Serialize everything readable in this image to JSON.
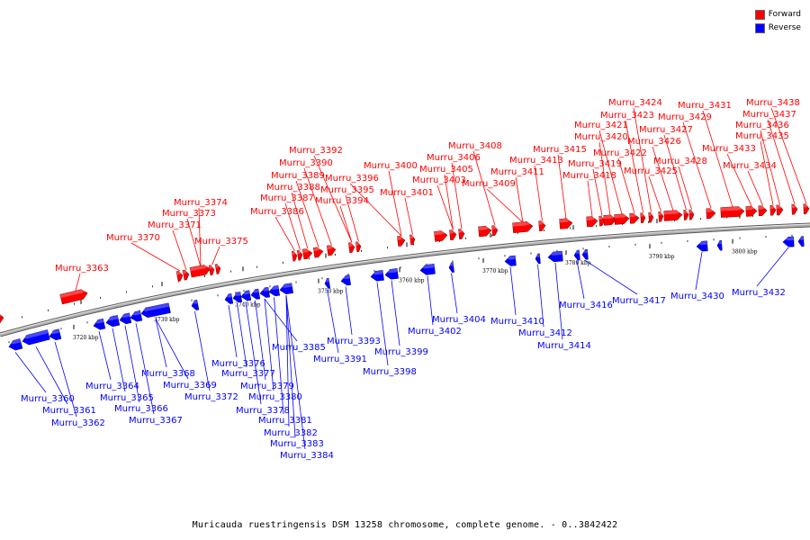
{
  "legend": {
    "forward_label": "Forward",
    "reverse_label": "Reverse",
    "forward_color": "#ff0000",
    "reverse_color": "#0000ff"
  },
  "caption": "Muricauda ruestringensis DSM 13258 chromosome, complete genome. - 0..3842422",
  "colors": {
    "forward": "#ff0000",
    "reverse": "#0000ff",
    "backbone": "#888888"
  },
  "ticks": [
    "3720 kbp",
    "3730 kbp",
    "3740 kbp",
    "3750 kbp",
    "3760 kbp",
    "3770 kbp",
    "3780 kbp",
    "3790 kbp",
    "3800 kbp"
  ],
  "forward_genes": [
    "Murru_3363",
    "Murru_3370",
    "Murru_3371",
    "Murru_3373",
    "Murru_3374",
    "Murru_3375",
    "Murru_3386",
    "Murru_3387",
    "Murru_3388",
    "Murru_3389",
    "Murru_3390",
    "Murru_3392",
    "Murru_3394",
    "Murru_3395",
    "Murru_3396",
    "Murru_3400",
    "Murru_3401",
    "Murru_3403",
    "Murru_3405",
    "Murru_3406",
    "Murru_3408",
    "Murru_3409",
    "Murru_3411",
    "Murru_3413",
    "Murru_3415",
    "Murru_3418",
    "Murru_3419",
    "Murru_3420",
    "Murru_3421",
    "Murru_3422",
    "Murru_3423",
    "Murru_3424",
    "Murru_3425",
    "Murru_3426",
    "Murru_3427",
    "Murru_3428",
    "Murru_3429",
    "Murru_3431",
    "Murru_3433",
    "Murru_3434",
    "Murru_3435",
    "Murru_3436",
    "Murru_3437",
    "Murru_3438"
  ],
  "reverse_genes": [
    "Murru_3360",
    "Murru_3361",
    "Murru_3362",
    "Murru_3364",
    "Murru_3365",
    "Murru_3366",
    "Murru_3367",
    "Murru_3368",
    "Murru_3369",
    "Murru_3372",
    "Murru_3376",
    "Murru_3377",
    "Murru_3378",
    "Murru_3379",
    "Murru_3380",
    "Murru_3381",
    "Murru_3382",
    "Murru_3383",
    "Murru_3384",
    "Murru_3385",
    "Murru_3391",
    "Murru_3393",
    "Murru_3398",
    "Murru_3399",
    "Murru_3402",
    "Murru_3404",
    "Murru_3410",
    "Murru_3412",
    "Murru_3414",
    "Murru_3416",
    "Murru_3417",
    "Murru_3430",
    "Murru_3432"
  ]
}
